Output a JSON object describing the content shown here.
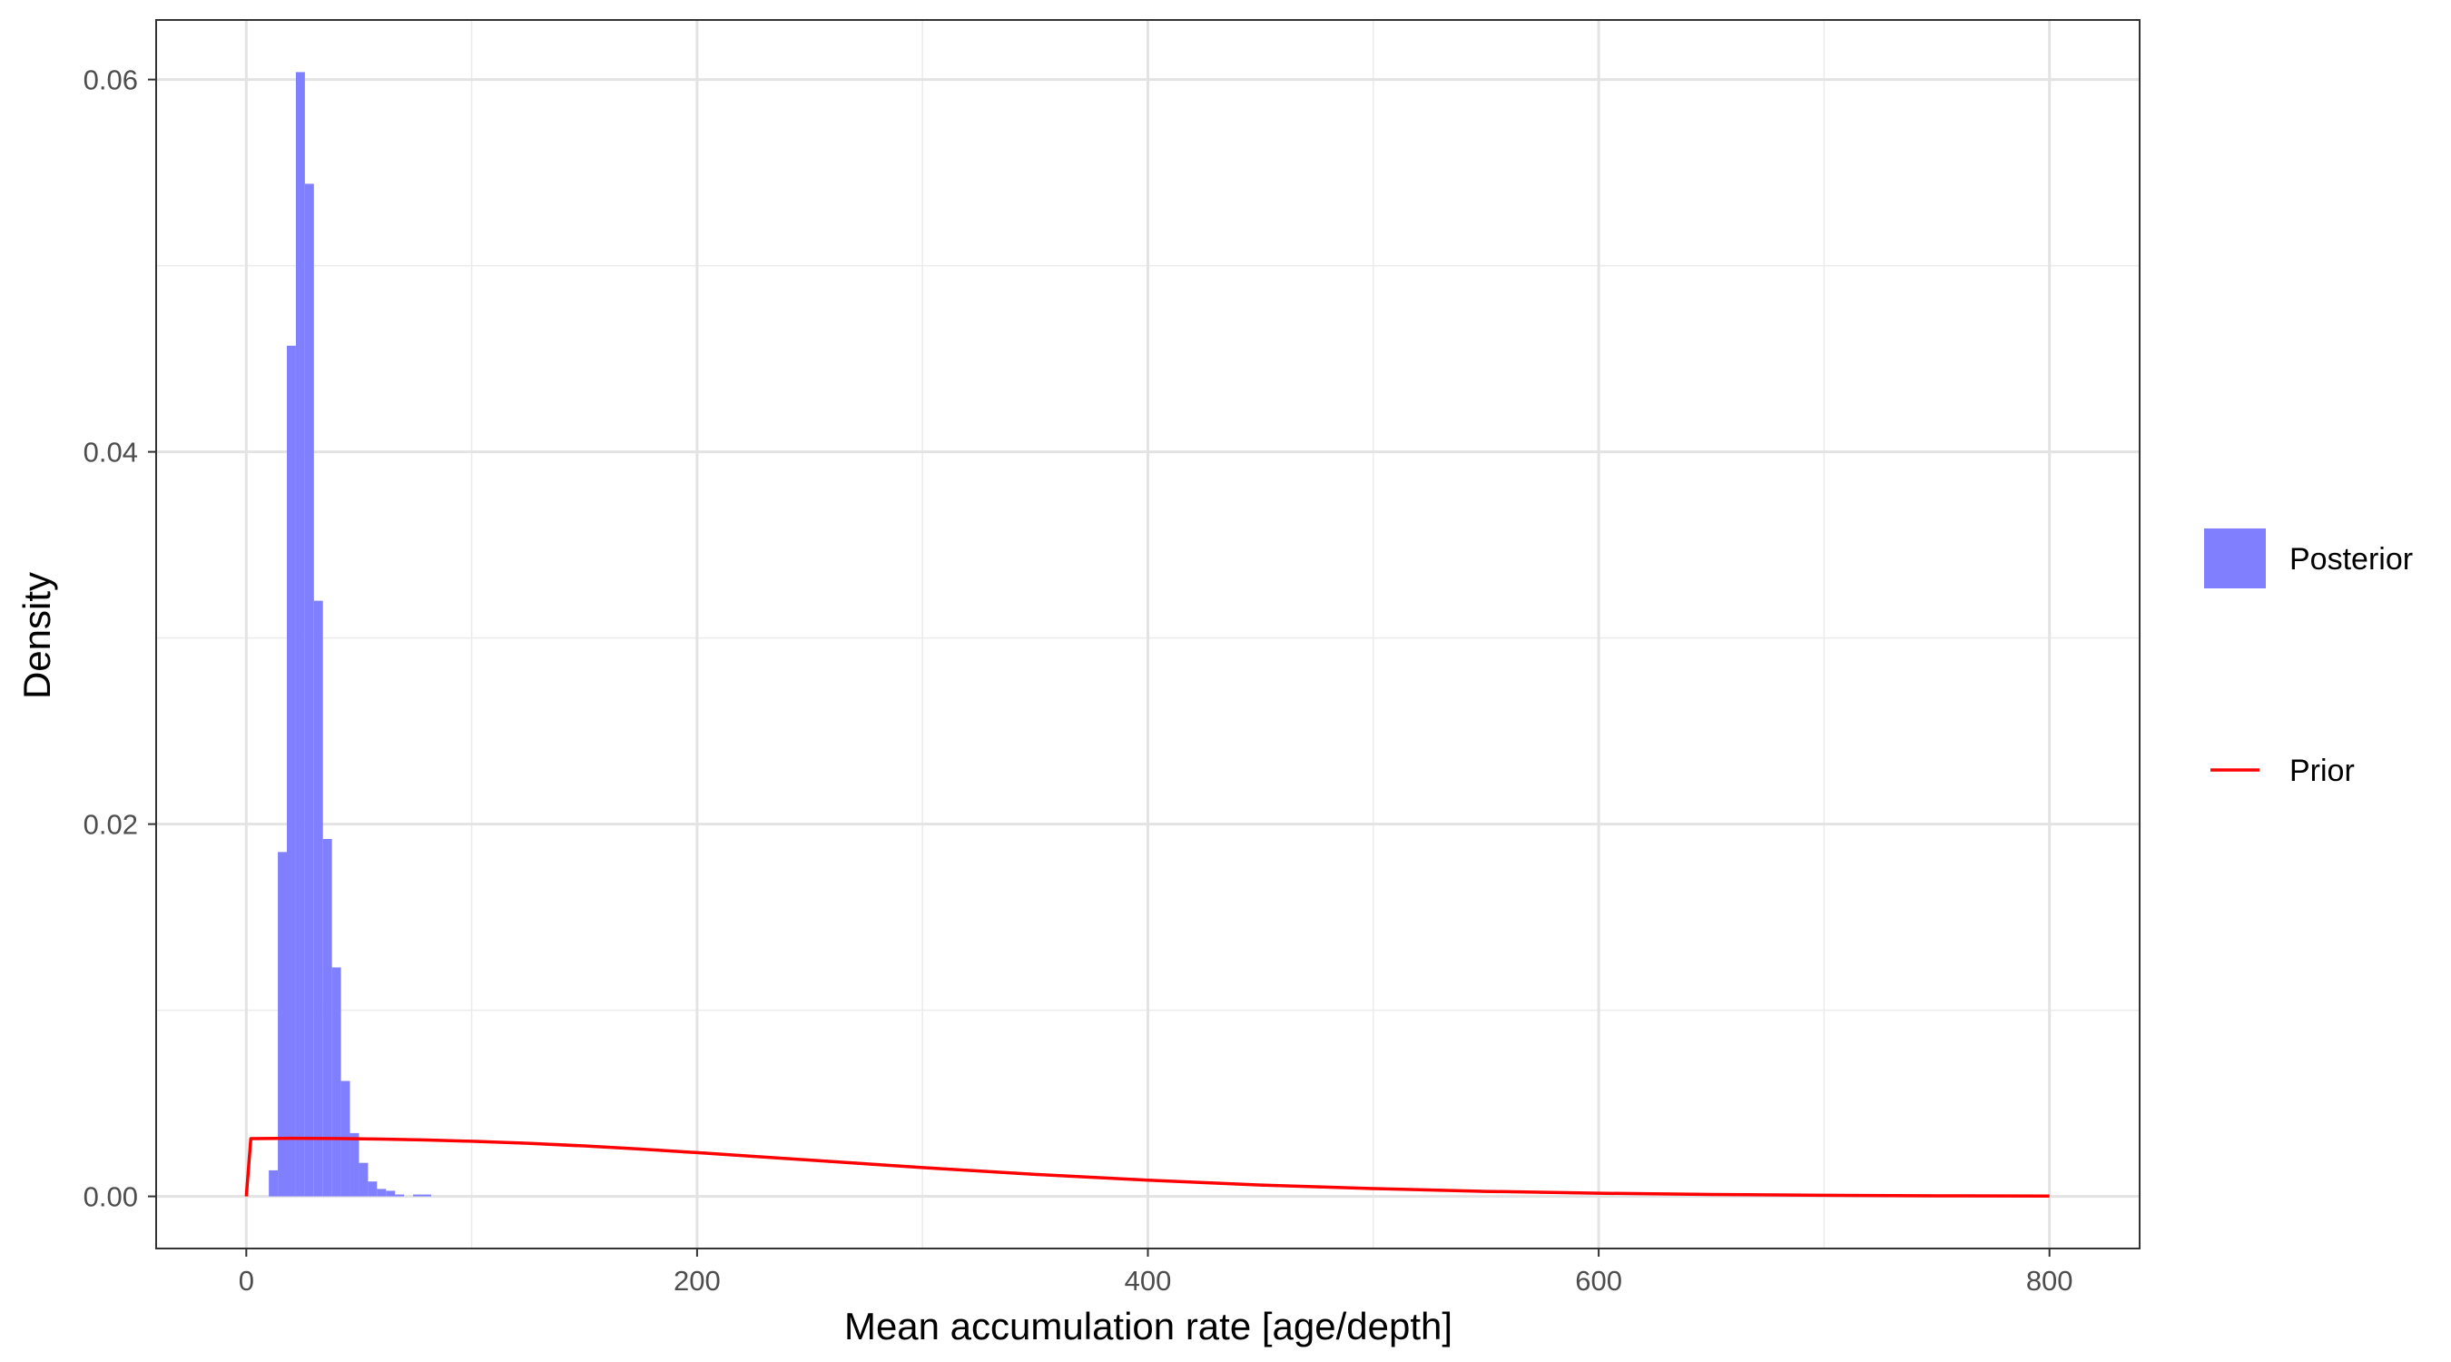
{
  "chart_data": {
    "type": "histogram",
    "title": "",
    "xlabel": "Mean accumulation rate [age/depth]",
    "ylabel": "Density",
    "xlim": [
      -40,
      840
    ],
    "ylim": [
      -0.0028,
      0.0632
    ],
    "x_ticks": [
      0,
      200,
      400,
      600,
      800
    ],
    "x_tick_labels": [
      "0",
      "200",
      "400",
      "600",
      "800"
    ],
    "y_ticks": [
      0.0,
      0.02,
      0.04,
      0.06
    ],
    "y_tick_labels": [
      "0.00",
      "0.02",
      "0.04",
      "0.06"
    ],
    "grid": true,
    "legend_position": "right",
    "colors": {
      "posterior": "#8080ff",
      "prior": "#ff0000"
    },
    "series": [
      {
        "name": "Posterior",
        "kind": "histogram",
        "bin_width": 4,
        "bins": [
          {
            "x0": 10,
            "x1": 14,
            "y": 0.0014
          },
          {
            "x0": 14,
            "x1": 18,
            "y": 0.0185
          },
          {
            "x0": 18,
            "x1": 22,
            "y": 0.0457
          },
          {
            "x0": 22,
            "x1": 26,
            "y": 0.0604
          },
          {
            "x0": 26,
            "x1": 30,
            "y": 0.0544
          },
          {
            "x0": 30,
            "x1": 34,
            "y": 0.032
          },
          {
            "x0": 34,
            "x1": 38,
            "y": 0.0192
          },
          {
            "x0": 38,
            "x1": 42,
            "y": 0.0123
          },
          {
            "x0": 42,
            "x1": 46,
            "y": 0.0062
          },
          {
            "x0": 46,
            "x1": 50,
            "y": 0.0034
          },
          {
            "x0": 50,
            "x1": 54,
            "y": 0.0018
          },
          {
            "x0": 54,
            "x1": 58,
            "y": 0.0008
          },
          {
            "x0": 58,
            "x1": 62,
            "y": 0.0004
          },
          {
            "x0": 62,
            "x1": 66,
            "y": 0.0003
          },
          {
            "x0": 66,
            "x1": 70,
            "y": 0.0001
          },
          {
            "x0": 70,
            "x1": 74,
            "y": 0.0
          },
          {
            "x0": 74,
            "x1": 78,
            "y": 0.0001
          },
          {
            "x0": 78,
            "x1": 82,
            "y": 0.0001
          }
        ]
      },
      {
        "name": "Prior",
        "kind": "line",
        "x": [
          0,
          2,
          20,
          40,
          60,
          80,
          100,
          125,
          150,
          175,
          200,
          250,
          300,
          350,
          400,
          450,
          500,
          550,
          600,
          650,
          700,
          750,
          800
        ],
        "y": [
          0.0,
          0.0031,
          0.00312,
          0.00311,
          0.00308,
          0.00303,
          0.00296,
          0.00285,
          0.00271,
          0.00254,
          0.00235,
          0.00195,
          0.00155,
          0.00118,
          0.00087,
          0.00061,
          0.00042,
          0.00027,
          0.00017,
          0.0001,
          6e-05,
          3e-05,
          2e-05
        ]
      }
    ],
    "legend": [
      {
        "label": "Posterior",
        "kind": "fill",
        "color": "#8080ff"
      },
      {
        "label": "Prior",
        "kind": "line",
        "color": "#ff0000"
      }
    ]
  }
}
